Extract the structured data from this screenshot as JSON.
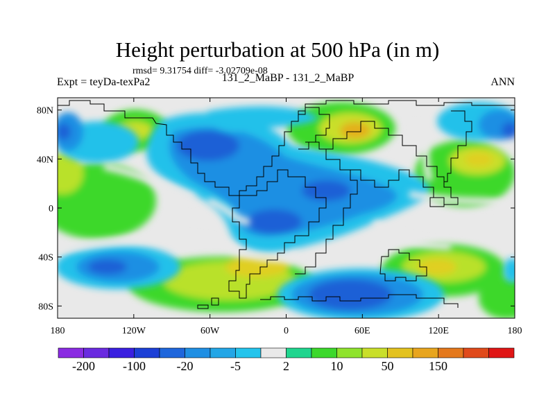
{
  "title": "Height perturbation at 500 hPa (in m)",
  "stats": "rmsd= 9.31754 diff= -3.02709e-08",
  "experiment": "Expt = teyDa-texPa2",
  "comparison": "131_2_MaBP - 131_2_MaBP",
  "season": "ANN",
  "lat_ticks": [
    {
      "value": 80,
      "label": "80N"
    },
    {
      "value": 40,
      "label": "40N"
    },
    {
      "value": 0,
      "label": "0"
    },
    {
      "value": -40,
      "label": "40S"
    },
    {
      "value": -80,
      "label": "80S"
    }
  ],
  "lon_ticks": [
    {
      "value": -180,
      "label": "180"
    },
    {
      "value": -120,
      "label": "120W"
    },
    {
      "value": -60,
      "label": "60W"
    },
    {
      "value": 0,
      "label": "0"
    },
    {
      "value": 60,
      "label": "60E"
    },
    {
      "value": 120,
      "label": "120E"
    },
    {
      "value": 180,
      "label": "180"
    }
  ],
  "colorbar": {
    "colors": [
      "#8a2be2",
      "#6a2ae0",
      "#3a1fe0",
      "#1c3fd6",
      "#1e66dc",
      "#1f8fe3",
      "#23a6e6",
      "#24c4ec",
      "#e9e9e9",
      "#1fd58e",
      "#3cd82c",
      "#8fe32d",
      "#c9df2a",
      "#e3c21f",
      "#e8a51e",
      "#e4781c",
      "#e04a1b",
      "#e01616"
    ],
    "labels": [
      {
        "index": 1,
        "text": "-200"
      },
      {
        "index": 3,
        "text": "-100"
      },
      {
        "index": 5,
        "text": "-20"
      },
      {
        "index": 7,
        "text": "-5"
      },
      {
        "index": 9,
        "text": "2"
      },
      {
        "index": 11,
        "text": "10"
      },
      {
        "index": 13,
        "text": "50"
      },
      {
        "index": 15,
        "text": "150"
      }
    ]
  },
  "field_colors": {
    "light_gray": "#e9e9e9",
    "cyan": "#23c1ea",
    "medium_blue": "#1f8fe3",
    "dark_blue": "#1c60d6",
    "green_cyan": "#1fd58e",
    "green": "#3cd82c",
    "yellow_green": "#b9e12a",
    "yellow": "#e0cf22",
    "orange": "#e3b01f"
  }
}
